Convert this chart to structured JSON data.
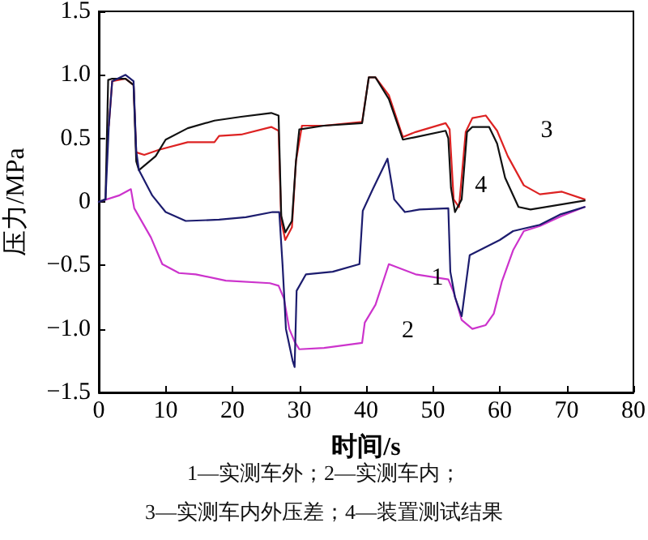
{
  "chart_data": {
    "type": "line",
    "xlabel": "时间/s",
    "ylabel": "压力/MPa",
    "xlim": [
      0,
      80
    ],
    "xticks": [
      0,
      10,
      20,
      30,
      40,
      50,
      60,
      70,
      80
    ],
    "ylim": [
      -1.5,
      1.5
    ],
    "yticks": [
      {
        "value": -1.5,
        "label": "−1.5"
      },
      {
        "value": -1.0,
        "label": "−1.0"
      },
      {
        "value": -0.5,
        "label": "−0.5"
      },
      0,
      0.5,
      {
        "value": 1.0,
        "label": "1.0"
      },
      1.5
    ],
    "grid": false,
    "legend": false,
    "marker": "none",
    "line_style": "solid",
    "annotations": [
      "1—实测车外；2—实测车内；",
      "3—实测车内外压差；4—装置测试结果"
    ],
    "series": [
      {
        "name": "1",
        "color": "#1c1c6e",
        "x": [
          0,
          1,
          1.5,
          2,
          4,
          5.2,
          5.6,
          6,
          8,
          10,
          13,
          18,
          22,
          26,
          27,
          27.5,
          28,
          29,
          29.3,
          29.6,
          31,
          35,
          39,
          39.5,
          41,
          43.2,
          44.2,
          45.8,
          48,
          52.3,
          52.6,
          53.3,
          54.3,
          54.8,
          55.5,
          57,
          60,
          62,
          66,
          69,
          72.7
        ],
        "values": [
          0,
          0.02,
          0.6,
          0.95,
          1.0,
          0.95,
          0.4,
          0.25,
          0.05,
          -0.08,
          -0.15,
          -0.14,
          -0.12,
          -0.08,
          -0.08,
          -0.5,
          -1.0,
          -1.25,
          -1.3,
          -0.7,
          -0.57,
          -0.55,
          -0.49,
          -0.07,
          0.1,
          0.34,
          0.02,
          -0.08,
          -0.06,
          -0.05,
          -0.55,
          -0.75,
          -0.9,
          -0.7,
          -0.42,
          -0.38,
          -0.3,
          -0.23,
          -0.18,
          -0.1,
          -0.04
        ]
      },
      {
        "name": "2",
        "color": "#cc33cc",
        "x": [
          0,
          3,
          4.8,
          5.3,
          7.8,
          9.5,
          12,
          14.5,
          19,
          25.6,
          26.9,
          27.7,
          28.5,
          29.3,
          30,
          33.7,
          39.4,
          39.8,
          41.4,
          43.4,
          47.4,
          52.3,
          53.1,
          54.3,
          55.9,
          57.9,
          59.1,
          60.3,
          62,
          63.6,
          66,
          69.3,
          72.7
        ],
        "values": [
          0,
          0.05,
          0.1,
          -0.05,
          -0.28,
          -0.49,
          -0.56,
          -0.57,
          -0.62,
          -0.64,
          -0.66,
          -0.76,
          -1.0,
          -1.1,
          -1.16,
          -1.15,
          -1.11,
          -0.95,
          -0.81,
          -0.49,
          -0.57,
          -0.61,
          -0.71,
          -0.93,
          -1.0,
          -0.97,
          -0.88,
          -0.63,
          -0.38,
          -0.23,
          -0.19,
          -0.11,
          -0.04
        ]
      },
      {
        "name": "3",
        "color": "#dd2222",
        "x": [
          1.5,
          2,
          4,
          5.2,
          5.6,
          6.8,
          9,
          13.3,
          17.3,
          18,
          21.3,
          25.8,
          26.9,
          27.3,
          27.9,
          28.9,
          29.5,
          30.4,
          33.7,
          39.4,
          40.4,
          41.4,
          43.4,
          45.5,
          47.4,
          51.9,
          52.5,
          53.1,
          53.9,
          54.9,
          55.9,
          57.9,
          59.6,
          61.2,
          63.6,
          66,
          69.3,
          72.7
        ],
        "values": [
          0.6,
          0.95,
          0.97,
          0.92,
          0.39,
          0.37,
          0.41,
          0.47,
          0.47,
          0.52,
          0.53,
          0.59,
          0.56,
          -0.15,
          -0.3,
          -0.2,
          0.32,
          0.6,
          0.6,
          0.63,
          0.98,
          0.98,
          0.84,
          0.51,
          0.55,
          0.62,
          0.57,
          0.02,
          -0.04,
          0.55,
          0.66,
          0.68,
          0.56,
          0.36,
          0.13,
          0.06,
          0.08,
          0.02
        ]
      },
      {
        "name": "4",
        "color": "#111111",
        "x": [
          0,
          1,
          1.4,
          2,
          4,
          5.2,
          5.6,
          6,
          8.5,
          10,
          13.3,
          17.3,
          21.3,
          25.8,
          26.9,
          27.3,
          27.9,
          28.9,
          29.5,
          30,
          33.7,
          39.4,
          40.4,
          41.4,
          43.4,
          45.5,
          47.4,
          51.9,
          52.3,
          52.7,
          53.3,
          54.3,
          55.1,
          55.9,
          58.4,
          59.6,
          60.8,
          62.8,
          64.6,
          72.7
        ],
        "values": [
          0,
          0.02,
          0.96,
          0.97,
          0.97,
          0.92,
          0.32,
          0.25,
          0.36,
          0.49,
          0.58,
          0.64,
          0.67,
          0.7,
          0.68,
          -0.11,
          -0.24,
          -0.15,
          0.32,
          0.57,
          0.6,
          0.62,
          0.98,
          0.98,
          0.81,
          0.49,
          0.51,
          0.56,
          0.5,
          0.11,
          -0.08,
          0.02,
          0.55,
          0.59,
          0.59,
          0.46,
          0.19,
          -0.04,
          -0.06,
          0.01
        ]
      }
    ]
  }
}
